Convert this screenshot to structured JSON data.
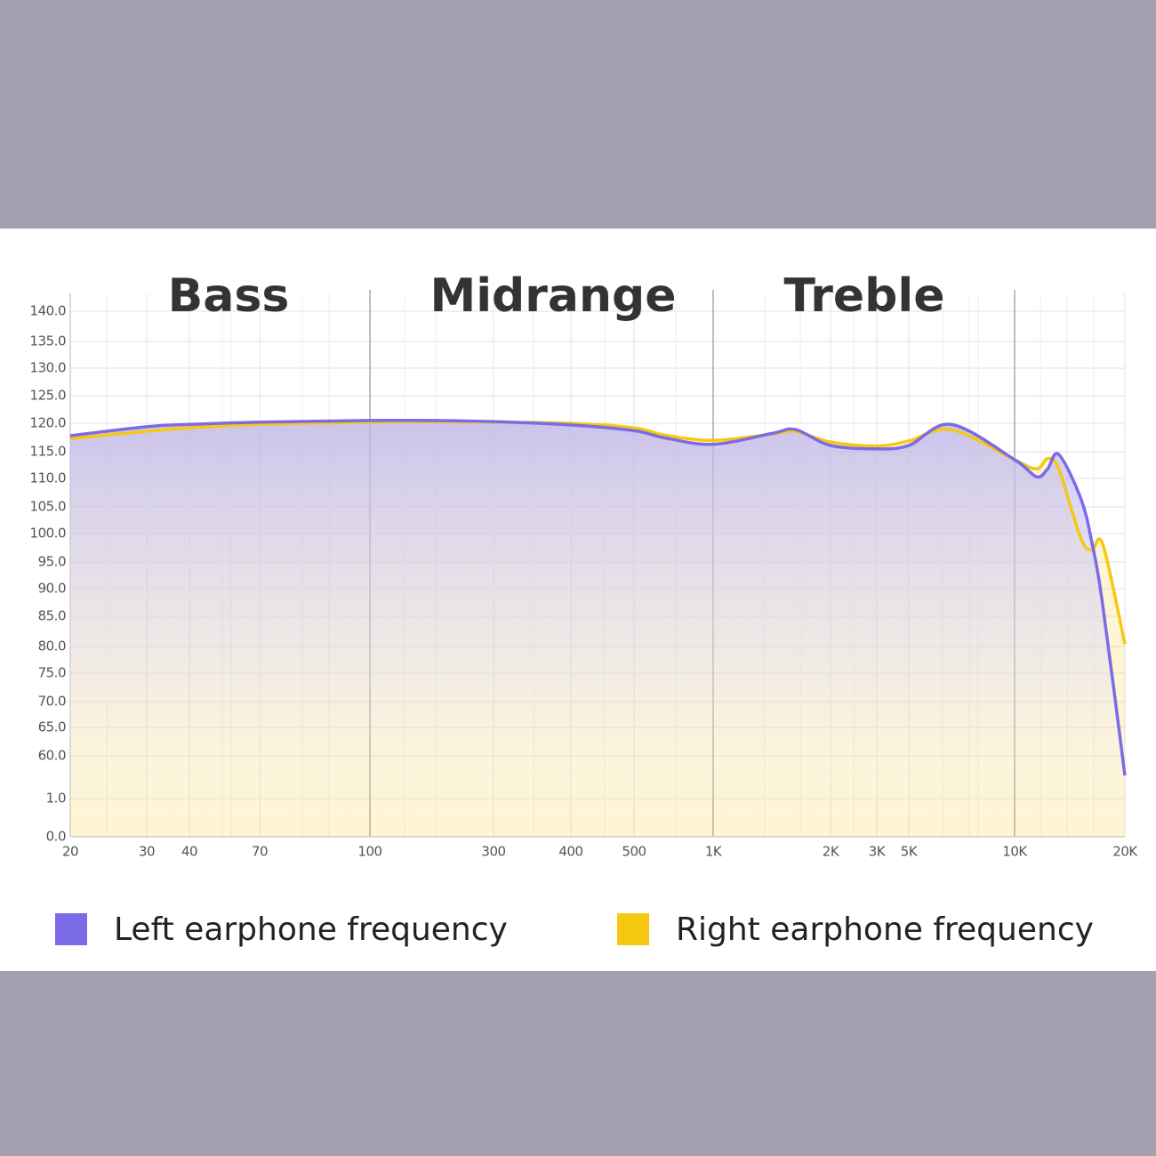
{
  "chart_data": {
    "type": "line",
    "annotations": [
      "Bass",
      "Midrange",
      "Treble"
    ],
    "x": [
      20,
      30,
      40,
      70,
      100,
      200,
      300,
      400,
      500,
      700,
      1000,
      1500,
      1700,
      2000,
      3000,
      5000,
      7000,
      10000,
      12000,
      13000,
      14000,
      16000,
      17000,
      18000,
      20000
    ],
    "series": [
      {
        "name": "Left earphone frequency",
        "color": "#7b6be6",
        "values": [
          117.8,
          119.4,
          119.8,
          120.2,
          120.5,
          120.5,
          120.3,
          119.7,
          118.7,
          117.4,
          116.3,
          118.2,
          118.9,
          116.1,
          115.5,
          116.1,
          119.8,
          113.5,
          110.3,
          111.8,
          114.5,
          106.5,
          98.5,
          86.9,
          33
        ]
      },
      {
        "name": "Right earphone frequency",
        "color": "#f7c811",
        "values": [
          117.3,
          118.6,
          119.2,
          119.8,
          120.2,
          120.3,
          120.2,
          120,
          119.2,
          117.9,
          117,
          118.1,
          118.6,
          116.7,
          116,
          116.9,
          118.9,
          113.5,
          111.8,
          113.7,
          111.8,
          99.2,
          97.1,
          98.1,
          80.4
        ]
      }
    ],
    "xlim": [
      20,
      20000
    ],
    "xticks": [
      20,
      30,
      40,
      70,
      100,
      300,
      400,
      500,
      {
        "value": 1000,
        "label": "1K"
      },
      {
        "value": 2000,
        "label": "2K"
      },
      {
        "value": 3000,
        "label": "3K"
      },
      {
        "value": 5000,
        "label": "5K"
      },
      {
        "value": 10000,
        "label": "10K"
      },
      {
        "value": 20000,
        "label": "20K"
      }
    ],
    "ylim": [
      0,
      140
    ],
    "yticks": [
      {
        "value": 140,
        "label": "140.0"
      },
      {
        "value": 135,
        "label": "135.0"
      },
      {
        "value": 130,
        "label": "130.0"
      },
      {
        "value": 125,
        "label": "125.0"
      },
      {
        "value": 120,
        "label": "120.0"
      },
      {
        "value": 115,
        "label": "115.0"
      },
      {
        "value": 110,
        "label": "110.0"
      },
      {
        "value": 105,
        "label": "105.0"
      },
      {
        "value": 100,
        "label": "100.0"
      },
      {
        "value": 95,
        "label": "95.0"
      },
      {
        "value": 90,
        "label": "90.0"
      },
      {
        "value": 85,
        "label": "85.0"
      },
      {
        "value": 80,
        "label": "80.0"
      },
      {
        "value": 75,
        "label": "75.0"
      },
      {
        "value": 70,
        "label": "70.0"
      },
      {
        "value": 65,
        "label": "65.0"
      },
      {
        "value": 60,
        "label": "60.0"
      },
      {
        "value": 1,
        "label": "1.0"
      },
      {
        "value": 0,
        "label": "0.0"
      }
    ],
    "grid": true
  }
}
